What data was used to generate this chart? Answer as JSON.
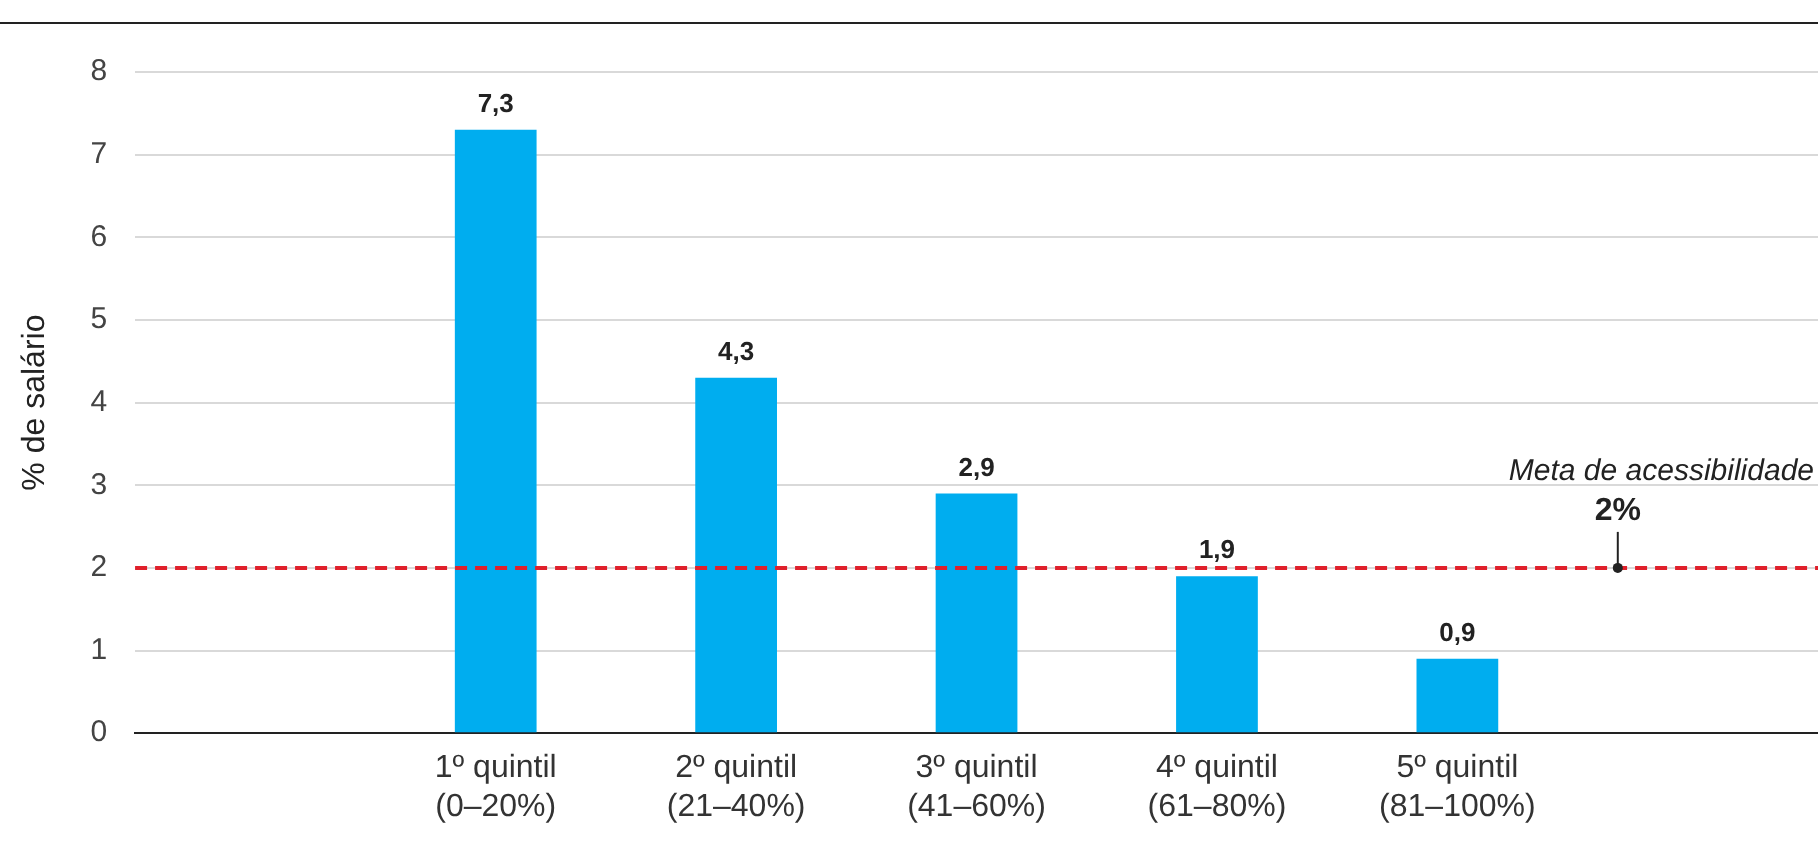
{
  "chart_data": {
    "type": "bar",
    "ylabel": "% de salário",
    "categories": [
      null,
      "1º quintil\n(0–20%)",
      "2º quintil\n(21–40%)",
      "3º quintil\n(41–60%)",
      "4º quintil\n(61–80%)",
      "5º quintil\n(81–100%)",
      null
    ],
    "values": [
      null,
      7.3,
      4.3,
      2.9,
      1.9,
      0.9,
      null
    ],
    "value_labels": [
      null,
      "7,3",
      "4,3",
      "2,9",
      "1,9",
      "0,9",
      null
    ],
    "color": "#00adef",
    "ylim": [
      0,
      8
    ],
    "yticks": [
      0,
      1,
      2,
      3,
      4,
      5,
      6,
      7,
      8
    ],
    "grid": "y",
    "legend": false,
    "ref_lines": [
      {
        "axis": "y",
        "value": 2,
        "label": "Meta de acessibilidade",
        "color": "#e0202b",
        "line_style": "dashed"
      }
    ],
    "annotations": [
      {
        "text": "2%",
        "y": 2
      }
    ]
  }
}
